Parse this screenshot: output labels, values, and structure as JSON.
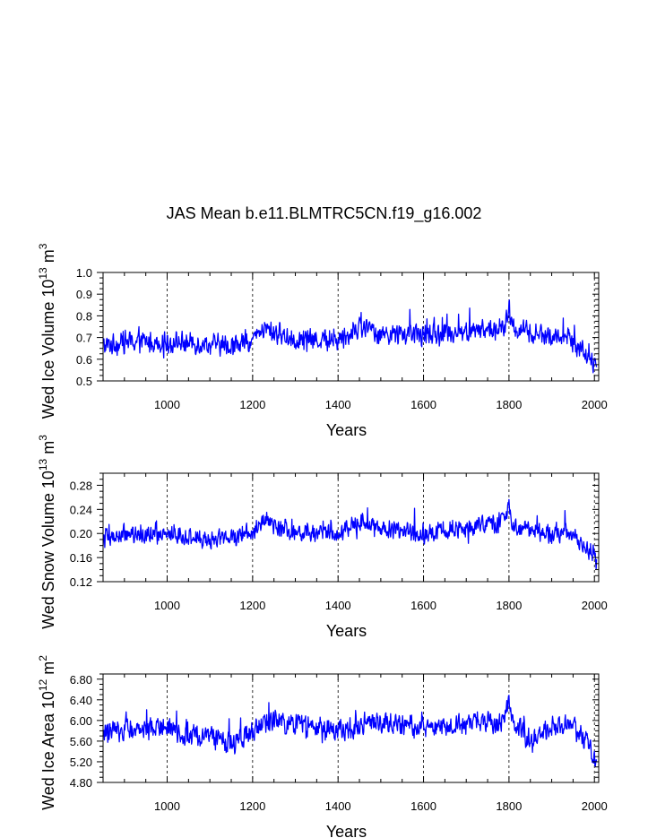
{
  "figure_title": "JAS Mean b.e11.BLMTRC5CN.f19_g16.002",
  "line_color": "#0000ff",
  "chart_data": [
    {
      "type": "line",
      "title": "",
      "ylabel": "Wed Ice Volume 10",
      "ylabel_exp": "13",
      "ylabel_unit": " m",
      "ylabel_unit_exp": "3",
      "xlabel": "Years",
      "xlim": [
        850,
        2010
      ],
      "ylim": [
        0.5,
        1.0
      ],
      "xticks": [
        1000,
        1200,
        1400,
        1600,
        1800,
        2000
      ],
      "xtick_labels": [
        "1000",
        "1200",
        "1400",
        "1600",
        "1800",
        "2000"
      ],
      "yticks": [
        0.5,
        0.6,
        0.7,
        0.8,
        0.9,
        1.0
      ],
      "ytick_labels": [
        "0.5",
        "0.6",
        "0.7",
        "0.8",
        "0.9",
        "1.0"
      ],
      "x_range": [
        850,
        2005
      ],
      "base_level": 0.7,
      "noise_amplitude": 0.065,
      "anchors": [
        [
          850,
          0.66
        ],
        [
          900,
          0.68
        ],
        [
          1000,
          0.68
        ],
        [
          1100,
          0.67
        ],
        [
          1150,
          0.66
        ],
        [
          1200,
          0.69
        ],
        [
          1230,
          0.74
        ],
        [
          1300,
          0.69
        ],
        [
          1400,
          0.69
        ],
        [
          1450,
          0.75
        ],
        [
          1500,
          0.72
        ],
        [
          1600,
          0.71
        ],
        [
          1700,
          0.73
        ],
        [
          1790,
          0.74
        ],
        [
          1800,
          0.83
        ],
        [
          1810,
          0.74
        ],
        [
          1900,
          0.7
        ],
        [
          1940,
          0.7
        ],
        [
          1960,
          0.66
        ],
        [
          1990,
          0.6
        ],
        [
          2005,
          0.55
        ]
      ],
      "series": [
        {
          "name": "Wed Ice Volume"
        }
      ]
    },
    {
      "type": "line",
      "title": "",
      "ylabel": "Wed Snow Volume 10",
      "ylabel_exp": "13",
      "ylabel_unit": " m",
      "ylabel_unit_exp": "3",
      "xlabel": "Years",
      "xlim": [
        850,
        2010
      ],
      "ylim": [
        0.12,
        0.3
      ],
      "xticks": [
        1000,
        1200,
        1400,
        1600,
        1800,
        2000
      ],
      "xtick_labels": [
        "1000",
        "1200",
        "1400",
        "1600",
        "1800",
        "2000"
      ],
      "yticks": [
        0.12,
        0.16,
        0.2,
        0.24,
        0.28
      ],
      "ytick_labels": [
        "0.12",
        "0.16",
        "0.20",
        "0.24",
        "0.28"
      ],
      "x_range": [
        850,
        2005
      ],
      "base_level": 0.2,
      "noise_amplitude": 0.021,
      "anchors": [
        [
          850,
          0.19
        ],
        [
          900,
          0.2
        ],
        [
          1000,
          0.2
        ],
        [
          1100,
          0.19
        ],
        [
          1200,
          0.2
        ],
        [
          1230,
          0.22
        ],
        [
          1300,
          0.2
        ],
        [
          1400,
          0.2
        ],
        [
          1450,
          0.22
        ],
        [
          1500,
          0.21
        ],
        [
          1600,
          0.2
        ],
        [
          1700,
          0.21
        ],
        [
          1790,
          0.22
        ],
        [
          1800,
          0.25
        ],
        [
          1810,
          0.21
        ],
        [
          1900,
          0.2
        ],
        [
          1940,
          0.2
        ],
        [
          1960,
          0.19
        ],
        [
          1990,
          0.17
        ],
        [
          2005,
          0.155
        ]
      ],
      "series": [
        {
          "name": "Wed Snow Volume"
        }
      ]
    },
    {
      "type": "line",
      "title": "",
      "ylabel": "Wed Ice Area 10",
      "ylabel_exp": "12",
      "ylabel_unit": " m",
      "ylabel_unit_exp": "2",
      "xlabel": "Years",
      "xlim": [
        850,
        2010
      ],
      "ylim": [
        4.8,
        6.9
      ],
      "xticks": [
        1000,
        1200,
        1400,
        1600,
        1800,
        2000
      ],
      "xtick_labels": [
        "1000",
        "1200",
        "1400",
        "1600",
        "1800",
        "2000"
      ],
      "yticks": [
        4.8,
        5.2,
        5.6,
        6.0,
        6.4,
        6.8
      ],
      "ytick_labels": [
        "4.80",
        "5.20",
        "5.60",
        "6.00",
        "6.40",
        "6.80"
      ],
      "x_range": [
        850,
        2005
      ],
      "base_level": 5.85,
      "noise_amplitude": 0.28,
      "anchors": [
        [
          850,
          5.75
        ],
        [
          900,
          5.85
        ],
        [
          1000,
          5.8
        ],
        [
          1100,
          5.7
        ],
        [
          1150,
          5.55
        ],
        [
          1200,
          5.8
        ],
        [
          1250,
          6.0
        ],
        [
          1300,
          5.9
        ],
        [
          1400,
          5.8
        ],
        [
          1500,
          6.0
        ],
        [
          1600,
          5.85
        ],
        [
          1700,
          5.95
        ],
        [
          1790,
          6.0
        ],
        [
          1800,
          6.35
        ],
        [
          1810,
          5.95
        ],
        [
          1850,
          5.6
        ],
        [
          1900,
          5.9
        ],
        [
          1950,
          5.9
        ],
        [
          1990,
          5.5
        ],
        [
          2005,
          5.05
        ]
      ],
      "series": [
        {
          "name": "Wed Ice Area"
        }
      ]
    }
  ]
}
